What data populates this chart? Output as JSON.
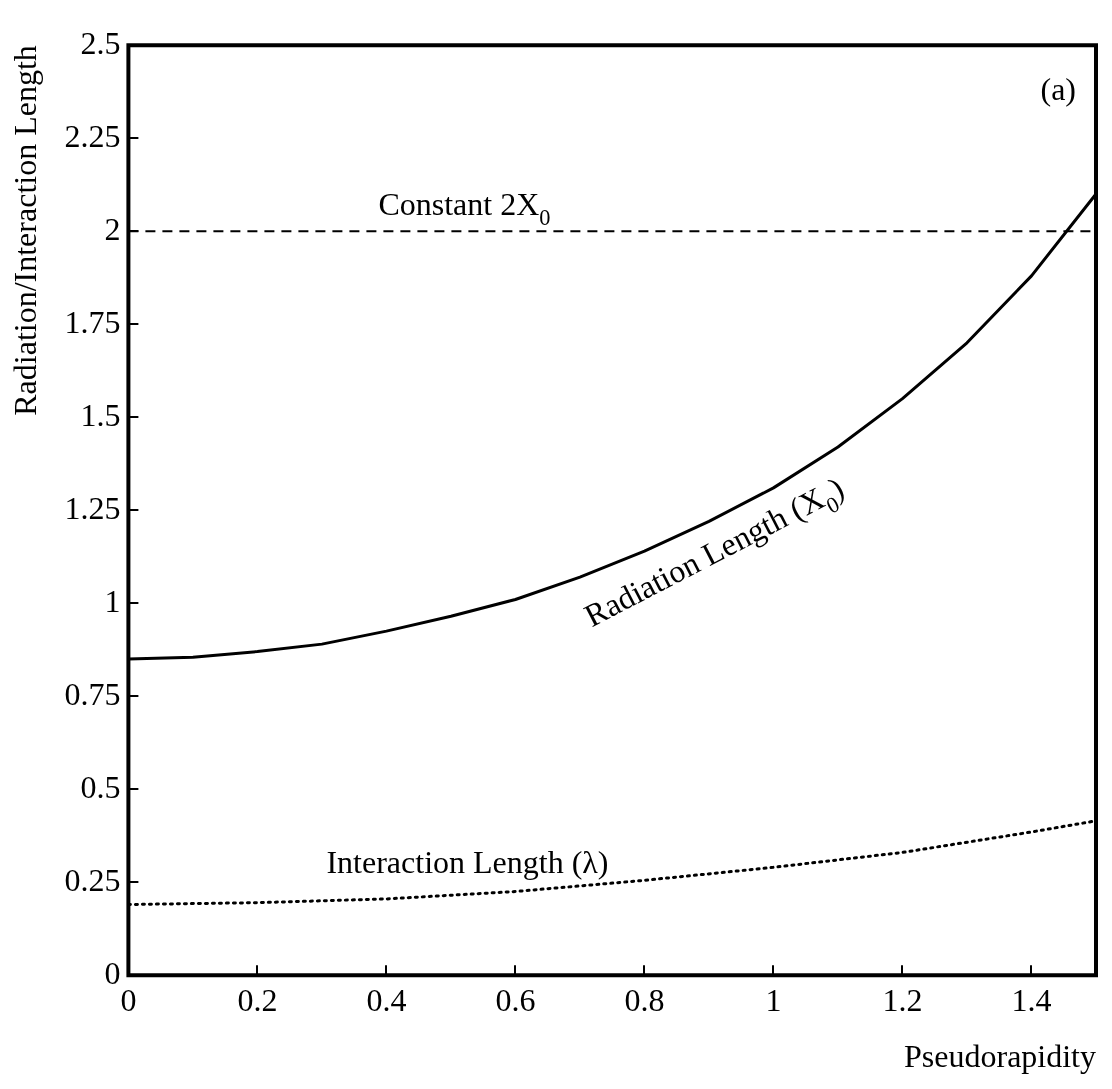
{
  "chart_data": {
    "type": "line",
    "xlabel": "Pseudorapidity",
    "ylabel": "Radiation/Interaction Length",
    "xlim": [
      0,
      1.5
    ],
    "ylim": [
      0,
      2.5
    ],
    "xticks": [
      0,
      0.2,
      0.4,
      0.6,
      0.8,
      1,
      1.2,
      1.4
    ],
    "yticks": [
      0,
      0.25,
      0.5,
      0.75,
      1,
      1.25,
      1.5,
      1.75,
      2,
      2.25,
      2.5
    ],
    "grid": false,
    "legend": false,
    "marker": "none",
    "series": [
      {
        "name": "Radiation Length (X$_{0}$)",
        "color": "#000000",
        "line_style": "solid",
        "x": [
          0,
          0.1,
          0.2,
          0.3,
          0.4,
          0.5,
          0.6,
          0.7,
          0.8,
          0.9,
          1.0,
          1.1,
          1.2,
          1.3,
          1.4,
          1.5
        ],
        "values": [
          0.85,
          0.855,
          0.87,
          0.89,
          0.925,
          0.965,
          1.01,
          1.07,
          1.14,
          1.22,
          1.31,
          1.42,
          1.55,
          1.7,
          1.88,
          2.1
        ]
      },
      {
        "name": "Interaction Length (λ)",
        "color": "#000000",
        "line_style": "dotted",
        "x": [
          0,
          0.2,
          0.4,
          0.6,
          0.8,
          1.0,
          1.2,
          1.4,
          1.5
        ],
        "values": [
          0.19,
          0.195,
          0.205,
          0.225,
          0.255,
          0.29,
          0.33,
          0.385,
          0.415
        ]
      }
    ],
    "ref_lines": [
      {
        "axis": "y",
        "value": 2,
        "label": "Constant 2X$_{0}$",
        "color": "#000000",
        "line_style": "dashed"
      }
    ],
    "annotations": [
      "(a)"
    ]
  }
}
